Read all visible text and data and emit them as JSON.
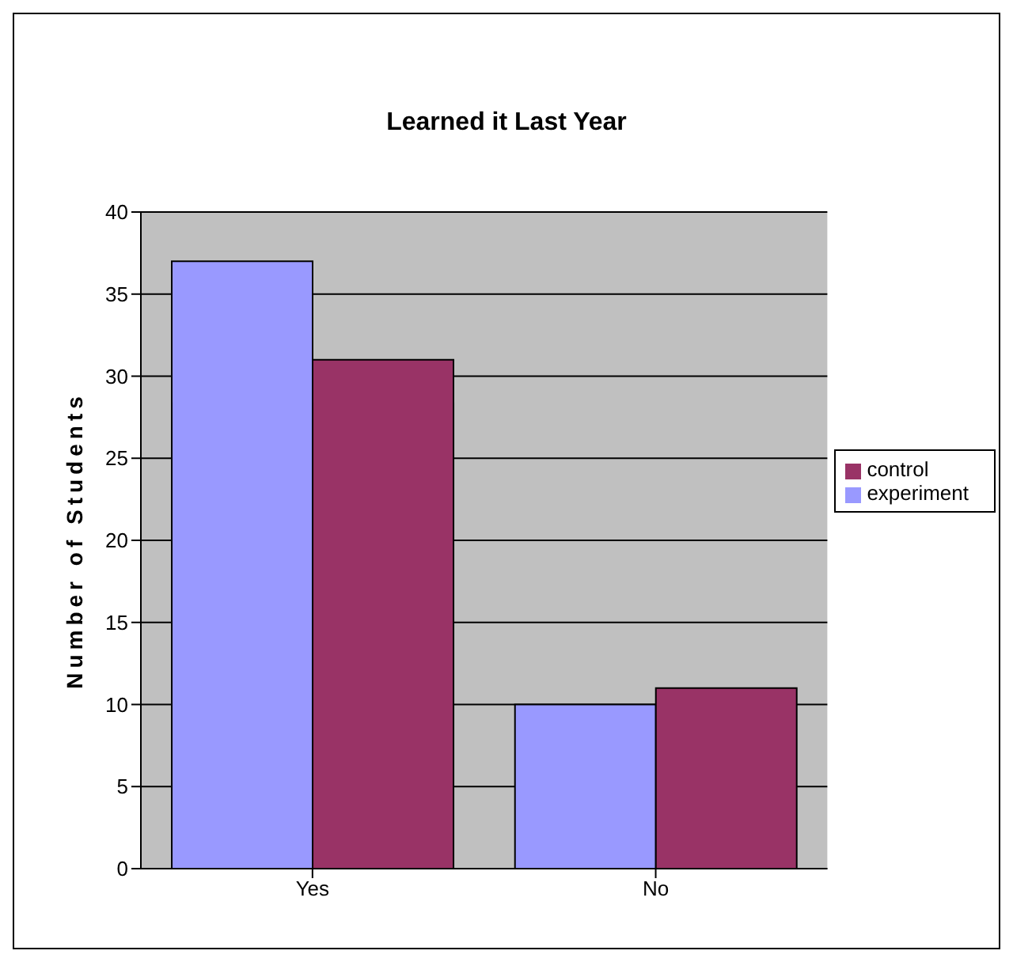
{
  "chart_data": {
    "type": "bar",
    "title": "Learned it Last Year",
    "ylabel": "Number of Students",
    "categories": [
      "Yes",
      "No"
    ],
    "series": [
      {
        "name": "experiment",
        "color": "#9999ff",
        "values": [
          37,
          10
        ]
      },
      {
        "name": "control",
        "color": "#993366",
        "values": [
          31,
          11
        ]
      }
    ],
    "ylim": [
      0,
      40
    ],
    "yticks": [
      0,
      5,
      10,
      15,
      20,
      25,
      30,
      35,
      40
    ],
    "grid": "y",
    "legend": "right"
  }
}
